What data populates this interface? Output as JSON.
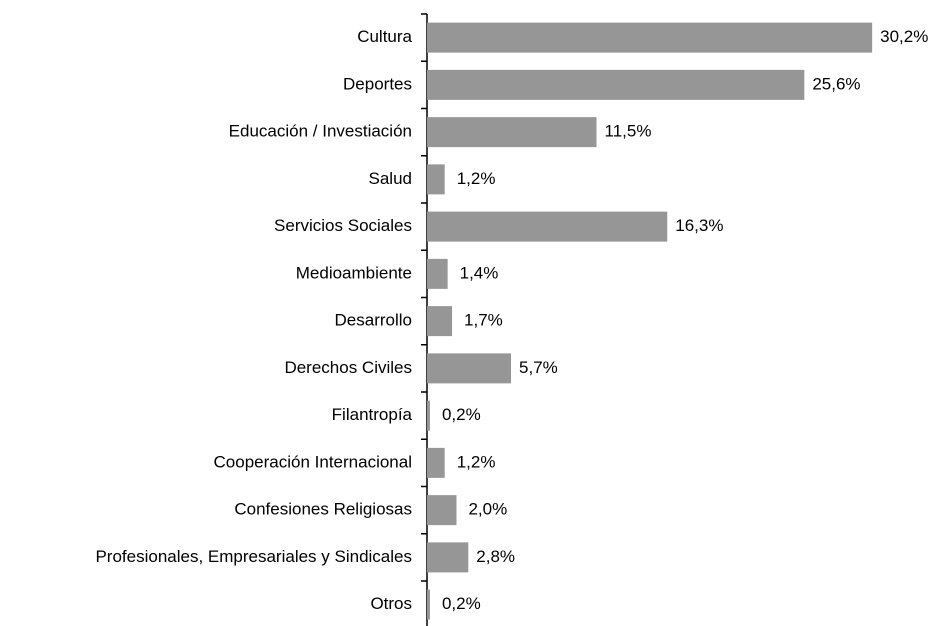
{
  "chart_data": {
    "type": "bar",
    "orientation": "horizontal",
    "categories": [
      "Cultura",
      "Deportes",
      "Educación / Investiación",
      "Salud",
      "Servicios Sociales",
      "Medioambiente",
      "Desarrollo",
      "Derechos Civiles",
      "Filantropía",
      "Cooperación Internacional",
      "Confesiones Religiosas",
      "Profesionales, Empresariales y Sindicales",
      "Otros"
    ],
    "values": [
      30.2,
      25.6,
      11.5,
      1.2,
      16.3,
      1.4,
      1.7,
      5.7,
      0.2,
      1.2,
      2.0,
      2.8,
      0.2
    ],
    "value_labels": [
      "30,2%",
      "25,6%",
      "11,5%",
      "1,2%",
      "16,3%",
      "1,4%",
      "1,7%",
      "5,7%",
      "0,2%",
      "1,2%",
      "2,0%",
      "2,8%",
      "0,2%"
    ],
    "color": "#969696"
  }
}
